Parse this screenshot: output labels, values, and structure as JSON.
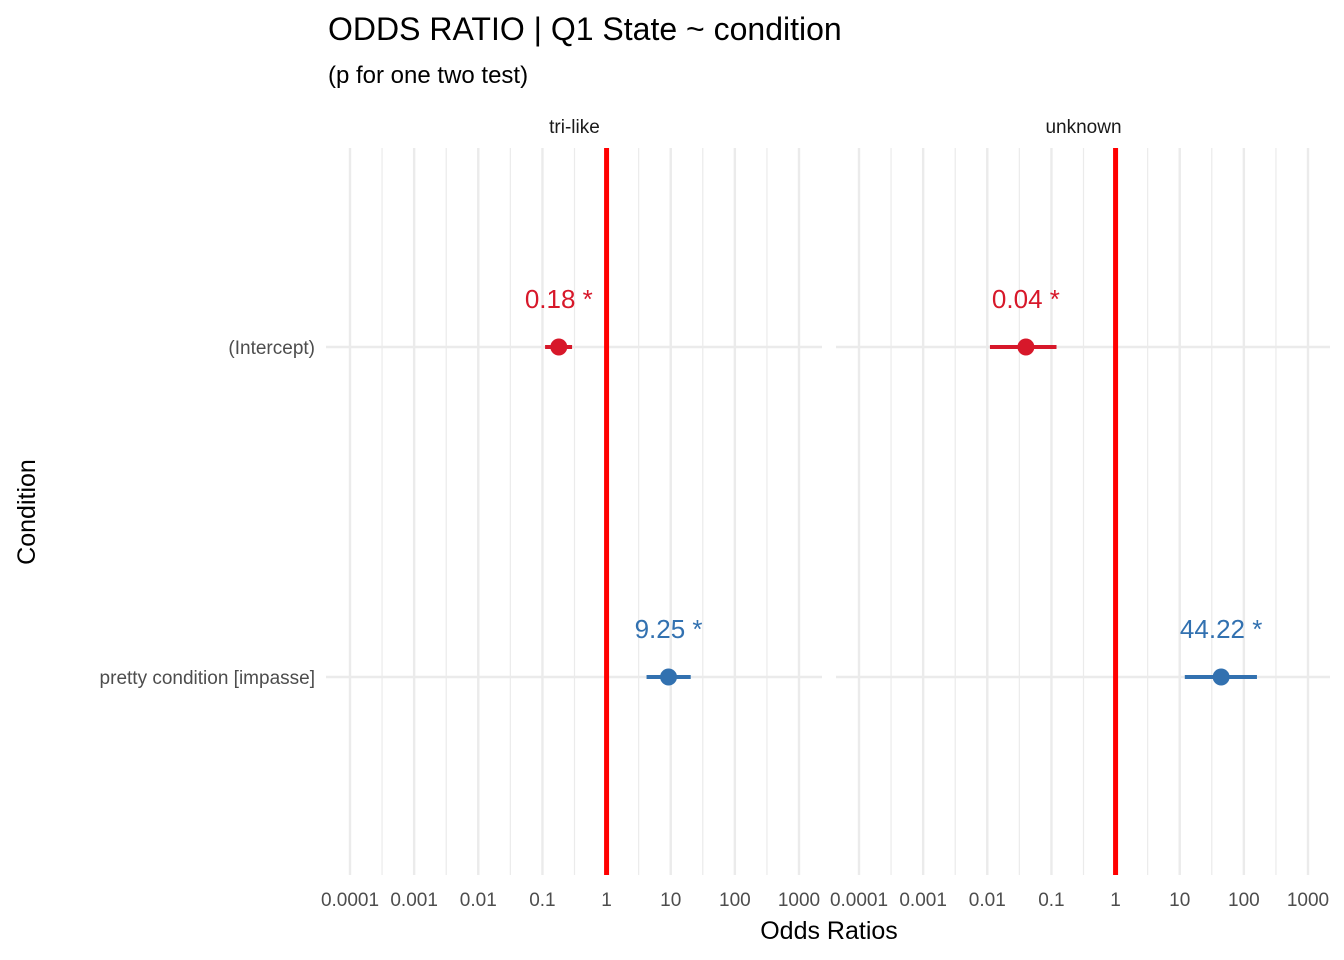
{
  "chart_data": {
    "type": "scatter",
    "title": "ODDS RATIO | Q1 State ~ condition",
    "subtitle": "(p for one two test)",
    "xlabel": "Odds Ratios",
    "ylabel": "Condition",
    "x_scale": "log10",
    "xlim": [
      0.0001,
      1000
    ],
    "x_ticks": [
      "0.0001",
      "0.001",
      "0.01",
      "0.1",
      "1",
      "10",
      "100",
      "1000"
    ],
    "categories": [
      "(Intercept)",
      "pretty condition [impasse]"
    ],
    "reference_line": 1,
    "grid": true,
    "legend": "none",
    "panels": [
      {
        "name": "tri-like",
        "points": [
          {
            "term": "(Intercept)",
            "estimate": 0.18,
            "ci_low": 0.11,
            "ci_high": 0.29,
            "label": "0.18 *"
          },
          {
            "term": "pretty condition [impasse]",
            "estimate": 9.25,
            "ci_low": 4.2,
            "ci_high": 20.5,
            "label": "9.25 *"
          }
        ]
      },
      {
        "name": "unknown",
        "points": [
          {
            "term": "(Intercept)",
            "estimate": 0.04,
            "ci_low": 0.011,
            "ci_high": 0.12,
            "label": "0.04 *"
          },
          {
            "term": "pretty condition [impasse]",
            "estimate": 44.22,
            "ci_low": 12.0,
            "ci_high": 160.0,
            "label": "44.22 *"
          }
        ]
      }
    ]
  },
  "colors": {
    "negative": "#D7182A",
    "positive": "#3271B0",
    "reference": "#FF0000",
    "grid": "#EBEBEB"
  }
}
